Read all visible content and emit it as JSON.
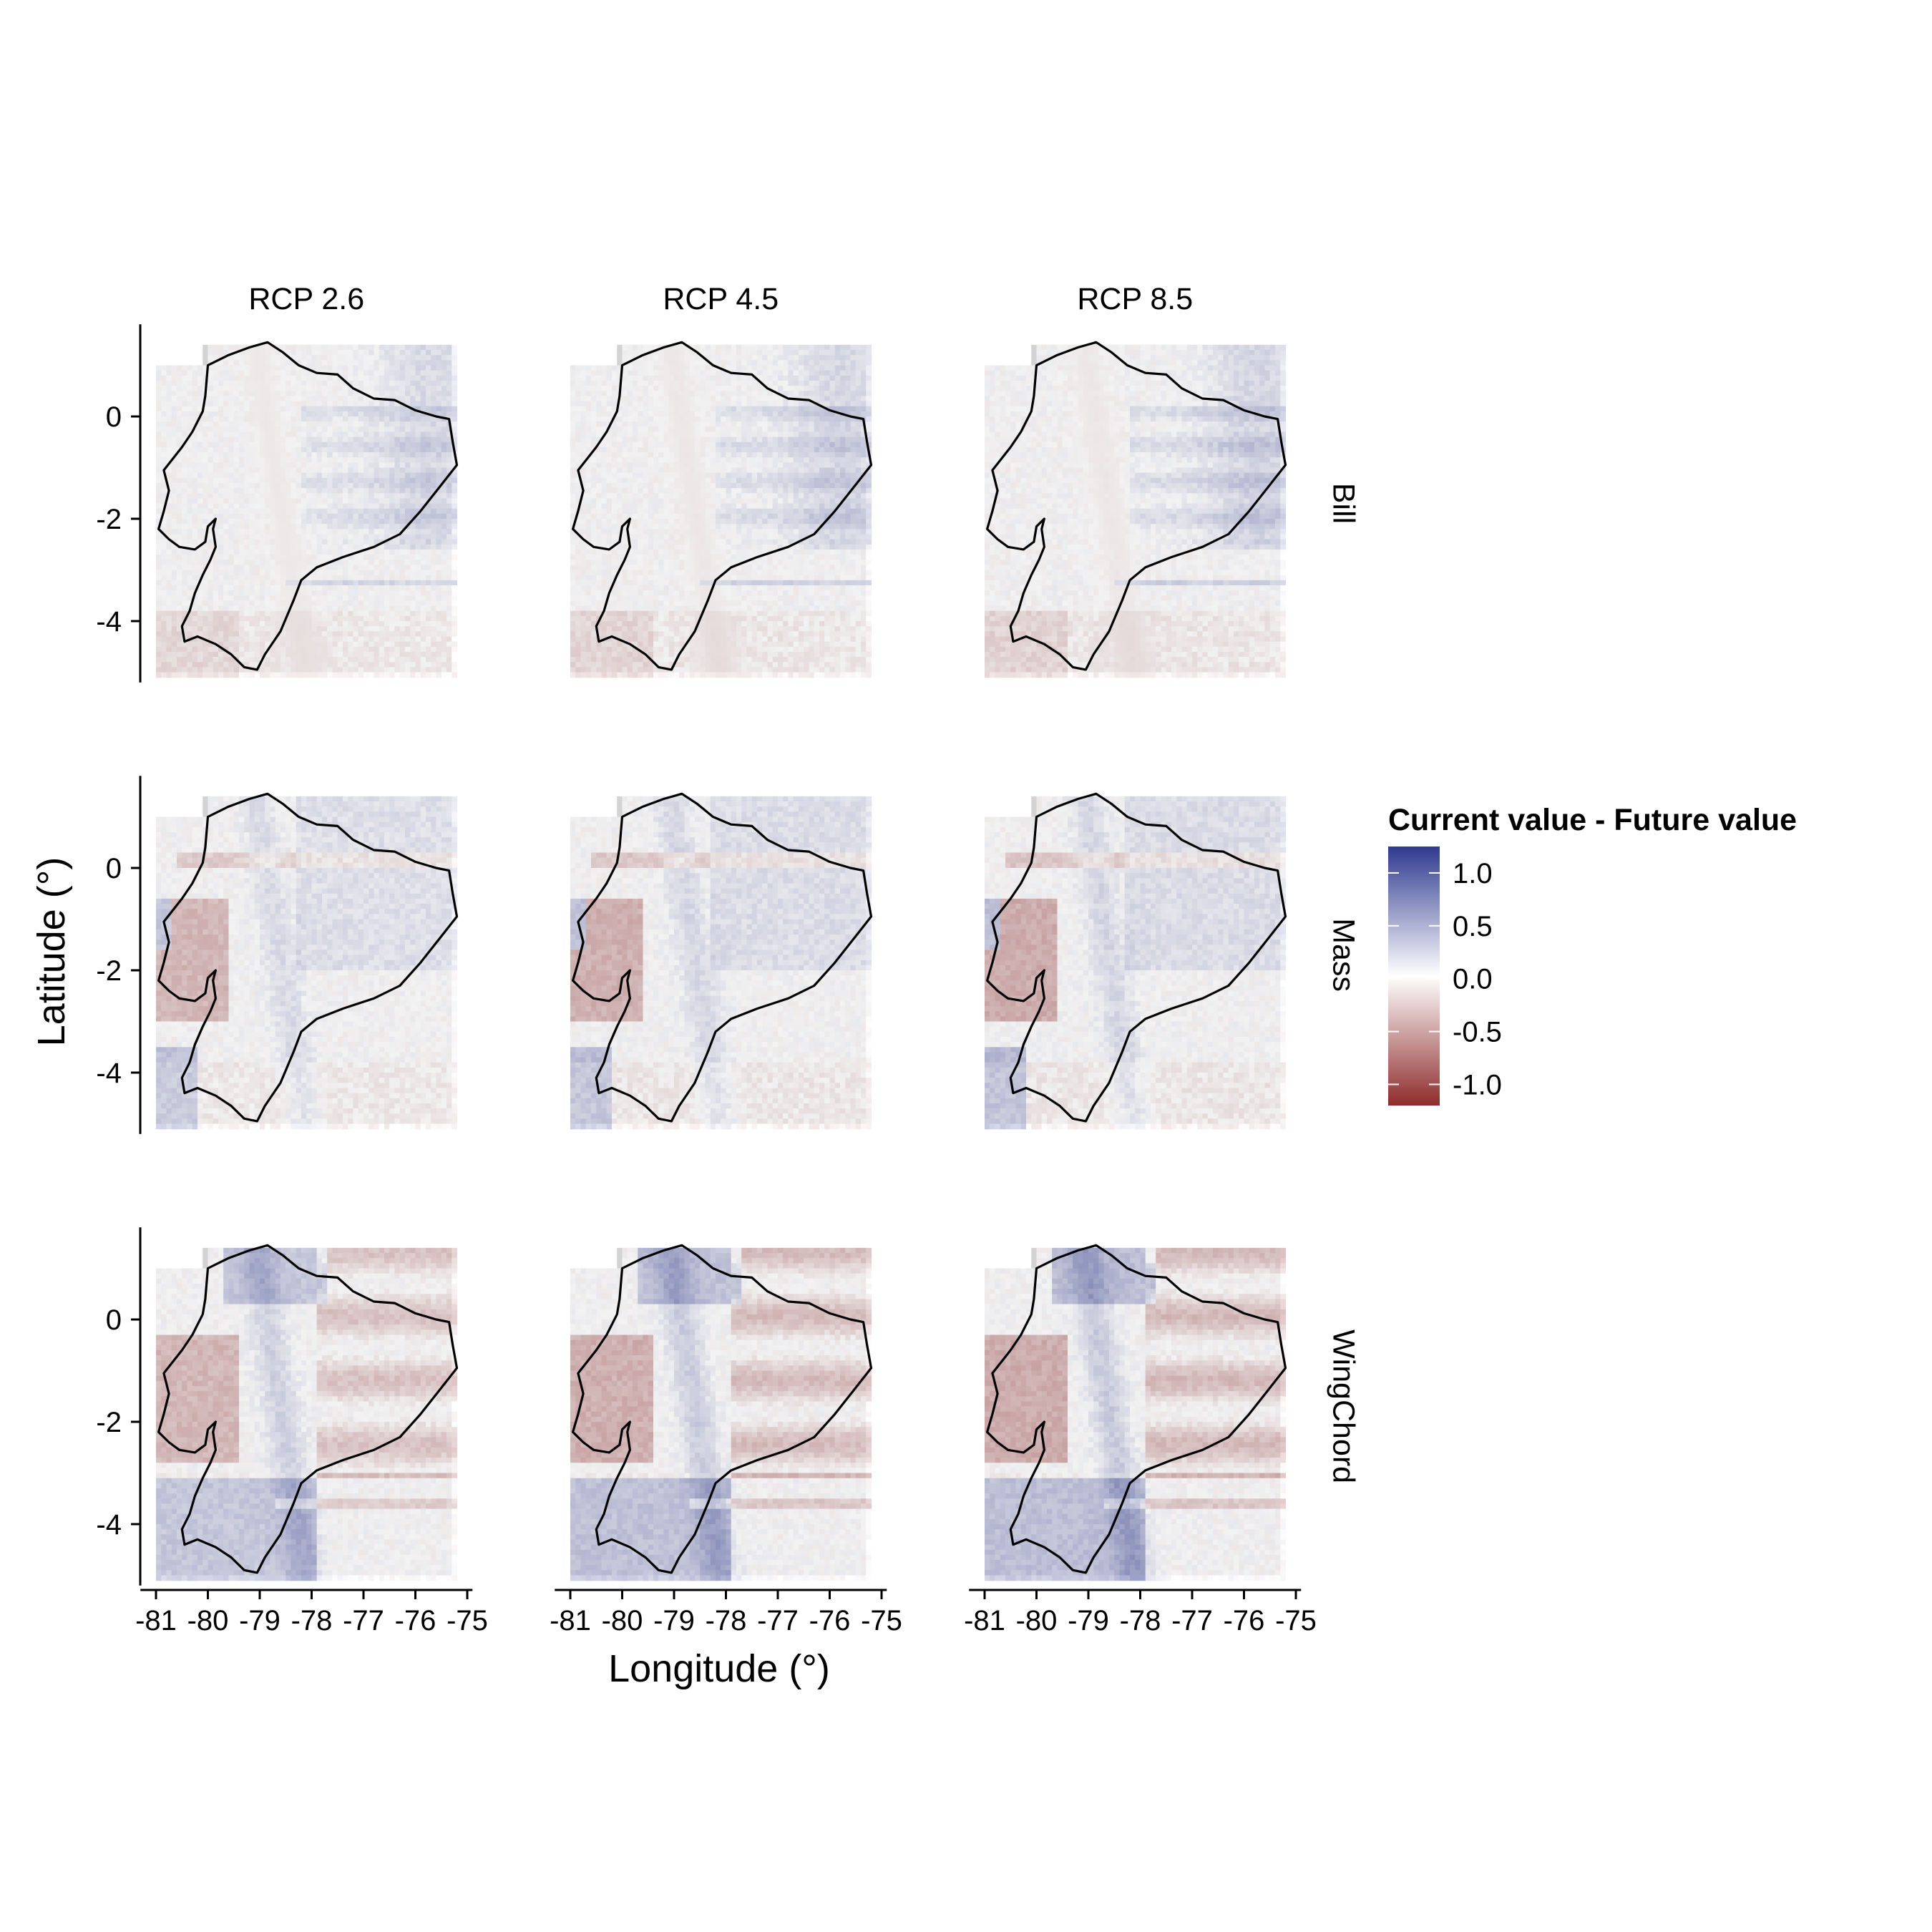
{
  "chart_data": {
    "type": "heatmap",
    "facet_columns": [
      "RCP 2.6",
      "RCP 4.5",
      "RCP 8.5"
    ],
    "facet_rows": [
      "Bill",
      "Mass",
      "WingChord"
    ],
    "xlabel": "Longitude (°)",
    "ylabel": "Latitude (°)",
    "xlim": [
      -81.3,
      -74.9
    ],
    "ylim": [
      -5.2,
      1.8
    ],
    "x_ticks": [
      -81,
      -80,
      -79,
      -78,
      -77,
      -76,
      -75
    ],
    "x_tick_labels": [
      "-81",
      "-80",
      "-79",
      "-78",
      "-77",
      "-76",
      "-75"
    ],
    "y_ticks": [
      0,
      -2,
      -4
    ],
    "y_tick_labels": [
      "0",
      "-2",
      "-4"
    ],
    "grid": false,
    "raster_extent": {
      "lon": [
        -81.0,
        -75.3
      ],
      "lat": [
        -5.0,
        1.4
      ]
    },
    "legend": {
      "title": "Current value - Future value",
      "position": "right",
      "range": [
        -1.2,
        1.25
      ],
      "ticks": [
        1.0,
        0.5,
        0.0,
        -0.5,
        -1.0
      ],
      "tick_labels": [
        "1.0",
        "0.5",
        "0.0",
        "-0.5",
        "-1.0"
      ],
      "colors": {
        "high": "#2f3a8f",
        "mid": "#ffffff",
        "low": "#8e2c2c"
      }
    },
    "panels": [
      {
        "row": "Bill",
        "col": "RCP 2.6",
        "pattern": "bill",
        "scale": 0.85
      },
      {
        "row": "Bill",
        "col": "RCP 4.5",
        "pattern": "bill",
        "scale": 0.95
      },
      {
        "row": "Bill",
        "col": "RCP 8.5",
        "pattern": "bill",
        "scale": 1.0
      },
      {
        "row": "Mass",
        "col": "RCP 2.6",
        "pattern": "mass",
        "scale": 0.85
      },
      {
        "row": "Mass",
        "col": "RCP 4.5",
        "pattern": "mass",
        "scale": 0.95
      },
      {
        "row": "Mass",
        "col": "RCP 8.5",
        "pattern": "mass",
        "scale": 1.0
      },
      {
        "row": "WingChord",
        "col": "RCP 2.6",
        "pattern": "wing",
        "scale": 0.85
      },
      {
        "row": "WingChord",
        "col": "RCP 4.5",
        "pattern": "wing",
        "scale": 0.95
      },
      {
        "row": "WingChord",
        "col": "RCP 8.5",
        "pattern": "wing",
        "scale": 1.0
      }
    ]
  }
}
